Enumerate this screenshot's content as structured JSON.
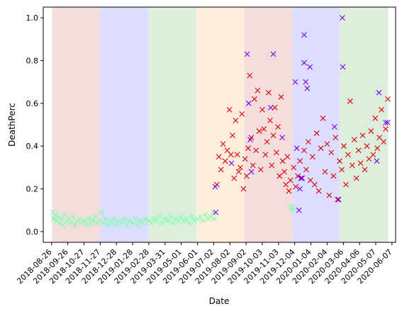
{
  "chart_data": {
    "type": "scatter",
    "title": "",
    "xlabel": "Date",
    "ylabel": "DeathPerc",
    "x_axis_kind": "date",
    "xlim": [
      "2018-08-10",
      "2020-06-14"
    ],
    "ylim": [
      -0.05,
      1.05
    ],
    "grid": false,
    "marker": "x",
    "x_tick_labels": [
      "2018-08-26",
      "2018-09-26",
      "2018-10-27",
      "2018-11-27",
      "2018-12-28",
      "2019-01-28",
      "2019-02-28",
      "2019-03-31",
      "2019-05-01",
      "2019-06-01",
      "2019-07-02",
      "2019-08-02",
      "2019-09-02",
      "2019-10-03",
      "2019-11-03",
      "2019-12-04",
      "2020-01-04",
      "2020-02-04",
      "2020-03-06",
      "2020-04-06",
      "2020-05-07",
      "2020-06-07"
    ],
    "y_tick_labels": [
      "0.0",
      "0.2",
      "0.4",
      "0.6",
      "0.8",
      "1.0"
    ],
    "y_ticks": [
      0.0,
      0.2,
      0.4,
      0.6,
      0.8,
      1.0
    ],
    "background_bands": [
      {
        "start": "2018-08-27",
        "end": "2018-11-27",
        "color": "#e8b4b4"
      },
      {
        "start": "2018-11-27",
        "end": "2019-02-27",
        "color": "#b3b3ff"
      },
      {
        "start": "2019-02-27",
        "end": "2019-05-30",
        "color": "#b3d9b3"
      },
      {
        "start": "2019-05-30",
        "end": "2019-08-30",
        "color": "#ffd9b3"
      },
      {
        "start": "2019-08-30",
        "end": "2019-11-30",
        "color": "#e8b4b4"
      },
      {
        "start": "2019-11-30",
        "end": "2020-02-28",
        "color": "#b3b3ff"
      },
      {
        "start": "2020-02-28",
        "end": "2020-05-31",
        "color": "#b3d9b3"
      }
    ],
    "series": [
      {
        "color": "#7fffb0",
        "values": [
          {
            "x": "2018-08-28",
            "y": 0.09
          },
          {
            "x": "2018-08-30",
            "y": 0.06
          },
          {
            "x": "2018-09-02",
            "y": 0.08
          },
          {
            "x": "2018-09-05",
            "y": 0.05
          },
          {
            "x": "2018-09-08",
            "y": 0.07
          },
          {
            "x": "2018-09-11",
            "y": 0.04
          },
          {
            "x": "2018-09-14",
            "y": 0.06
          },
          {
            "x": "2018-09-17",
            "y": 0.03
          },
          {
            "x": "2018-09-20",
            "y": 0.08
          },
          {
            "x": "2018-09-24",
            "y": 0.05
          },
          {
            "x": "2018-09-28",
            "y": 0.06
          },
          {
            "x": "2018-10-02",
            "y": 0.04
          },
          {
            "x": "2018-10-06",
            "y": 0.07
          },
          {
            "x": "2018-10-10",
            "y": 0.03
          },
          {
            "x": "2018-10-14",
            "y": 0.05
          },
          {
            "x": "2018-10-18",
            "y": 0.06
          },
          {
            "x": "2018-10-22",
            "y": 0.04
          },
          {
            "x": "2018-10-27",
            "y": 0.05
          },
          {
            "x": "2018-11-01",
            "y": 0.03
          },
          {
            "x": "2018-11-05",
            "y": 0.06
          },
          {
            "x": "2018-11-09",
            "y": 0.04
          },
          {
            "x": "2018-11-13",
            "y": 0.05
          },
          {
            "x": "2018-11-17",
            "y": 0.07
          },
          {
            "x": "2018-11-21",
            "y": 0.04
          },
          {
            "x": "2018-11-25",
            "y": 0.05
          },
          {
            "x": "2018-11-29",
            "y": 0.09
          },
          {
            "x": "2018-12-03",
            "y": 0.04
          },
          {
            "x": "2018-12-07",
            "y": 0.06
          },
          {
            "x": "2018-12-11",
            "y": 0.03
          },
          {
            "x": "2018-12-15",
            "y": 0.05
          },
          {
            "x": "2018-12-19",
            "y": 0.04
          },
          {
            "x": "2018-12-23",
            "y": 0.06
          },
          {
            "x": "2018-12-28",
            "y": 0.03
          },
          {
            "x": "2019-01-02",
            "y": 0.05
          },
          {
            "x": "2019-01-07",
            "y": 0.04
          },
          {
            "x": "2019-01-12",
            "y": 0.06
          },
          {
            "x": "2019-01-17",
            "y": 0.03
          },
          {
            "x": "2019-01-22",
            "y": 0.05
          },
          {
            "x": "2019-01-28",
            "y": 0.04
          },
          {
            "x": "2019-02-02",
            "y": 0.06
          },
          {
            "x": "2019-02-07",
            "y": 0.03
          },
          {
            "x": "2019-02-12",
            "y": 0.05
          },
          {
            "x": "2019-02-17",
            "y": 0.04
          },
          {
            "x": "2019-02-22",
            "y": 0.06
          },
          {
            "x": "2019-02-28",
            "y": 0.05
          },
          {
            "x": "2019-03-05",
            "y": 0.04
          },
          {
            "x": "2019-03-10",
            "y": 0.06
          },
          {
            "x": "2019-03-15",
            "y": 0.05
          },
          {
            "x": "2019-03-20",
            "y": 0.07
          },
          {
            "x": "2019-03-26",
            "y": 0.04
          },
          {
            "x": "2019-03-31",
            "y": 0.06
          },
          {
            "x": "2019-04-05",
            "y": 0.05
          },
          {
            "x": "2019-04-10",
            "y": 0.07
          },
          {
            "x": "2019-04-15",
            "y": 0.04
          },
          {
            "x": "2019-04-20",
            "y": 0.06
          },
          {
            "x": "2019-04-26",
            "y": 0.05
          },
          {
            "x": "2019-05-01",
            "y": 0.07
          },
          {
            "x": "2019-05-06",
            "y": 0.05
          },
          {
            "x": "2019-05-11",
            "y": 0.06
          },
          {
            "x": "2019-05-16",
            "y": 0.04
          },
          {
            "x": "2019-05-21",
            "y": 0.07
          },
          {
            "x": "2019-05-26",
            "y": 0.05
          },
          {
            "x": "2019-06-01",
            "y": 0.06
          },
          {
            "x": "2019-06-06",
            "y": 0.07
          },
          {
            "x": "2019-06-11",
            "y": 0.05
          },
          {
            "x": "2019-06-16",
            "y": 0.08
          },
          {
            "x": "2019-06-21",
            "y": 0.06
          },
          {
            "x": "2019-06-26",
            "y": 0.07
          },
          {
            "x": "2019-07-01",
            "y": 0.09
          },
          {
            "x": "2019-07-03",
            "y": 0.06
          },
          {
            "x": "2019-11-27",
            "y": 0.12
          },
          {
            "x": "2019-11-29",
            "y": 0.1
          },
          {
            "x": "2019-11-30",
            "y": 0.11
          }
        ]
      },
      {
        "color": "#dd0000",
        "values": [
          {
            "x": "2019-07-08",
            "y": 0.22
          },
          {
            "x": "2019-07-12",
            "y": 0.35
          },
          {
            "x": "2019-07-16",
            "y": 0.29
          },
          {
            "x": "2019-07-20",
            "y": 0.41
          },
          {
            "x": "2019-07-24",
            "y": 0.33
          },
          {
            "x": "2019-07-28",
            "y": 0.38
          },
          {
            "x": "2019-08-01",
            "y": 0.57
          },
          {
            "x": "2019-08-04",
            "y": 0.36
          },
          {
            "x": "2019-08-07",
            "y": 0.45
          },
          {
            "x": "2019-08-10",
            "y": 0.25
          },
          {
            "x": "2019-08-13",
            "y": 0.52
          },
          {
            "x": "2019-08-16",
            "y": 0.36
          },
          {
            "x": "2019-08-19",
            "y": 0.28
          },
          {
            "x": "2019-08-22",
            "y": 0.3
          },
          {
            "x": "2019-08-25",
            "y": 0.55
          },
          {
            "x": "2019-08-28",
            "y": 0.2
          },
          {
            "x": "2019-08-31",
            "y": 0.34
          },
          {
            "x": "2019-09-03",
            "y": 0.26
          },
          {
            "x": "2019-09-06",
            "y": 0.39
          },
          {
            "x": "2019-09-09",
            "y": 0.73
          },
          {
            "x": "2019-09-12",
            "y": 0.44
          },
          {
            "x": "2019-09-15",
            "y": 0.31
          },
          {
            "x": "2019-09-18",
            "y": 0.62
          },
          {
            "x": "2019-09-21",
            "y": 0.38
          },
          {
            "x": "2019-09-24",
            "y": 0.66
          },
          {
            "x": "2019-09-27",
            "y": 0.47
          },
          {
            "x": "2019-09-30",
            "y": 0.29
          },
          {
            "x": "2019-10-03",
            "y": 0.57
          },
          {
            "x": "2019-10-06",
            "y": 0.48
          },
          {
            "x": "2019-10-09",
            "y": 0.36
          },
          {
            "x": "2019-10-12",
            "y": 0.42
          },
          {
            "x": "2019-10-15",
            "y": 0.65
          },
          {
            "x": "2019-10-18",
            "y": 0.52
          },
          {
            "x": "2019-10-21",
            "y": 0.31
          },
          {
            "x": "2019-10-24",
            "y": 0.45
          },
          {
            "x": "2019-10-27",
            "y": 0.58
          },
          {
            "x": "2019-10-30",
            "y": 0.37
          },
          {
            "x": "2019-11-02",
            "y": 0.49
          },
          {
            "x": "2019-11-05",
            "y": 0.26
          },
          {
            "x": "2019-11-08",
            "y": 0.63
          },
          {
            "x": "2019-11-11",
            "y": 0.33
          },
          {
            "x": "2019-11-14",
            "y": 0.28
          },
          {
            "x": "2019-11-17",
            "y": 0.22
          },
          {
            "x": "2019-11-20",
            "y": 0.35
          },
          {
            "x": "2019-11-23",
            "y": 0.19
          },
          {
            "x": "2019-11-26",
            "y": 0.24
          },
          {
            "x": "2019-12-02",
            "y": 0.3
          },
          {
            "x": "2019-12-06",
            "y": 0.21
          },
          {
            "x": "2019-12-10",
            "y": 0.26
          },
          {
            "x": "2019-12-14",
            "y": 0.33
          },
          {
            "x": "2019-12-18",
            "y": 0.25
          },
          {
            "x": "2019-12-22",
            "y": 0.38
          },
          {
            "x": "2019-12-26",
            "y": 0.29
          },
          {
            "x": "2019-12-30",
            "y": 0.42
          },
          {
            "x": "2020-01-03",
            "y": 0.24
          },
          {
            "x": "2020-01-07",
            "y": 0.35
          },
          {
            "x": "2020-01-11",
            "y": 0.22
          },
          {
            "x": "2020-01-15",
            "y": 0.46
          },
          {
            "x": "2020-01-19",
            "y": 0.19
          },
          {
            "x": "2020-01-23",
            "y": 0.39
          },
          {
            "x": "2020-01-27",
            "y": 0.53
          },
          {
            "x": "2020-01-31",
            "y": 0.28
          },
          {
            "x": "2020-02-04",
            "y": 0.41
          },
          {
            "x": "2020-02-08",
            "y": 0.17
          },
          {
            "x": "2020-02-12",
            "y": 0.37
          },
          {
            "x": "2020-02-16",
            "y": 0.26
          },
          {
            "x": "2020-02-20",
            "y": 0.44
          },
          {
            "x": "2020-02-24",
            "y": 0.15
          },
          {
            "x": "2020-02-28",
            "y": 0.33
          },
          {
            "x": "2020-03-03",
            "y": 0.29
          },
          {
            "x": "2020-03-07",
            "y": 0.4
          },
          {
            "x": "2020-03-11",
            "y": 0.22
          },
          {
            "x": "2020-03-15",
            "y": 0.36
          },
          {
            "x": "2020-03-19",
            "y": 0.61
          },
          {
            "x": "2020-03-23",
            "y": 0.31
          },
          {
            "x": "2020-03-27",
            "y": 0.43
          },
          {
            "x": "2020-03-31",
            "y": 0.25
          },
          {
            "x": "2020-04-04",
            "y": 0.38
          },
          {
            "x": "2020-04-08",
            "y": 0.32
          },
          {
            "x": "2020-04-12",
            "y": 0.45
          },
          {
            "x": "2020-04-16",
            "y": 0.29
          },
          {
            "x": "2020-04-20",
            "y": 0.4
          },
          {
            "x": "2020-04-24",
            "y": 0.34
          },
          {
            "x": "2020-04-28",
            "y": 0.47
          },
          {
            "x": "2020-05-02",
            "y": 0.36
          },
          {
            "x": "2020-05-06",
            "y": 0.53
          },
          {
            "x": "2020-05-10",
            "y": 0.39
          },
          {
            "x": "2020-05-14",
            "y": 0.44
          },
          {
            "x": "2020-05-18",
            "y": 0.57
          },
          {
            "x": "2020-05-22",
            "y": 0.42
          },
          {
            "x": "2020-05-26",
            "y": 0.48
          },
          {
            "x": "2020-05-30",
            "y": 0.62
          }
        ]
      },
      {
        "color": "#7700ee",
        "values": [
          {
            "x": "2019-07-05",
            "y": 0.21
          },
          {
            "x": "2019-07-06",
            "y": 0.09
          },
          {
            "x": "2019-08-05",
            "y": 0.32
          },
          {
            "x": "2019-09-04",
            "y": 0.83
          },
          {
            "x": "2019-09-07",
            "y": 0.6
          },
          {
            "x": "2019-09-10",
            "y": 0.43
          },
          {
            "x": "2019-09-12",
            "y": 0.28
          },
          {
            "x": "2019-10-24",
            "y": 0.83
          },
          {
            "x": "2019-10-19",
            "y": 0.58
          },
          {
            "x": "2019-11-10",
            "y": 0.44
          },
          {
            "x": "2019-12-05",
            "y": 0.7
          },
          {
            "x": "2019-12-08",
            "y": 0.39
          },
          {
            "x": "2019-12-12",
            "y": 0.1
          },
          {
            "x": "2019-12-14",
            "y": 0.2
          },
          {
            "x": "2019-12-16",
            "y": 0.25
          },
          {
            "x": "2019-12-18",
            "y": 0.25
          },
          {
            "x": "2019-12-22",
            "y": 0.92
          },
          {
            "x": "2019-12-22",
            "y": 0.79
          },
          {
            "x": "2019-12-25",
            "y": 0.7
          },
          {
            "x": "2019-12-28",
            "y": 0.67
          },
          {
            "x": "2020-01-02",
            "y": 0.77
          },
          {
            "x": "2020-02-18",
            "y": 0.49
          },
          {
            "x": "2020-02-26",
            "y": 0.15
          },
          {
            "x": "2020-03-04",
            "y": 1.0
          },
          {
            "x": "2020-03-05",
            "y": 0.77
          },
          {
            "x": "2020-05-09",
            "y": 0.33
          },
          {
            "x": "2020-05-13",
            "y": 0.65
          },
          {
            "x": "2020-05-26",
            "y": 0.51
          },
          {
            "x": "2020-05-30",
            "y": 0.51
          }
        ]
      }
    ]
  }
}
